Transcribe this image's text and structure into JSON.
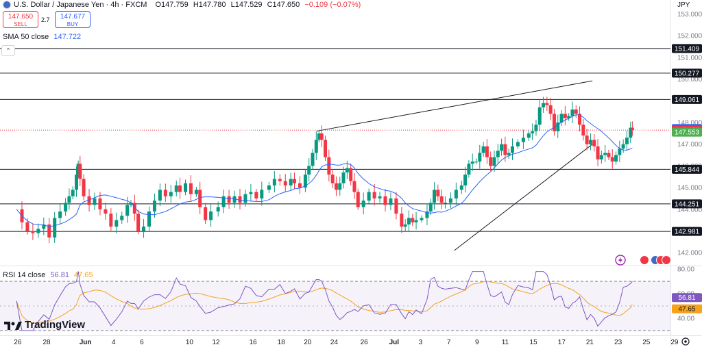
{
  "header": {
    "symbol": "U.S. Dollar / Japanese Yen · 4h · FXCM",
    "flag_icon": "us-jp-flag-icon",
    "ohlc": {
      "o": "O147.759",
      "h": "H147.780",
      "l": "L147.529",
      "c": "C147.650",
      "chg": "−0.109 (−0.07%)"
    }
  },
  "trade": {
    "sell_price": "147.650",
    "sell_label": "SELL",
    "spread": "2.7",
    "buy_price": "147.677",
    "buy_label": "BUY"
  },
  "indicators": {
    "sma": {
      "label": "SMA 50 close",
      "value": "147.722"
    },
    "rsi": {
      "label": "RSI 14 close",
      "value": "56.81",
      "ma_value": "47.65"
    }
  },
  "currency": "JPY",
  "brand": "TradingView",
  "colors": {
    "up": "#089981",
    "down": "#f23645",
    "sma": "#2962ff",
    "rsi": "#7e57c2",
    "rsi_ma": "#f7a21b",
    "accent_purple": "#9c27b0"
  },
  "chart_data": [
    {
      "type": "candlestick",
      "title": "U.S. Dollar / Japanese Yen · 4h · FXCM",
      "x_ticks": [
        "26",
        "28",
        "Jun",
        "4",
        "6",
        "10",
        "12",
        "16",
        "18",
        "20",
        "24",
        "26",
        "Jul",
        "3",
        "7",
        "9",
        "11",
        "15",
        "17",
        "21",
        "23",
        "25",
        "29"
      ],
      "y_ticks": [
        "153.000",
        "152.000",
        "151.000",
        "150.000",
        "149.000",
        "148.000",
        "147.000",
        "146.000",
        "145.000",
        "144.000",
        "143.000",
        "142.000"
      ],
      "ylim": [
        141.4,
        153.3
      ],
      "horizontal_levels": [
        151.409,
        150.277,
        149.061,
        145.844,
        144.251,
        142.981
      ],
      "price_labels": [
        {
          "text": "151.409",
          "value": 151.409,
          "bg": "#131722"
        },
        {
          "text": "150.277",
          "value": 150.277,
          "bg": "#131722"
        },
        {
          "text": "149.061",
          "value": 149.061,
          "bg": "#131722"
        },
        {
          "text": "147.722",
          "value": 147.722,
          "bg": "#2962ff"
        },
        {
          "text": "147.650",
          "value": 147.65,
          "bg": "#f23645"
        },
        {
          "text": "147.553",
          "value": 147.553,
          "bg": "#4caf50"
        },
        {
          "text": "145.844",
          "value": 145.844,
          "bg": "#131722"
        },
        {
          "text": "144.251",
          "value": 144.251,
          "bg": "#131722"
        },
        {
          "text": "142.981",
          "value": 142.981,
          "bg": "#131722"
        }
      ],
      "trendlines": [
        {
          "from": [
            16.2,
            147.6
          ],
          "to": [
            31.4,
            149.92
          ]
        },
        {
          "from": [
            23.8,
            142.1
          ],
          "to": [
            31.4,
            147.0
          ]
        }
      ],
      "current_price": 147.65,
      "close_series": [
        [
          -0.3,
          144.0
        ],
        [
          0.0,
          143.4
        ],
        [
          0.3,
          143.0
        ],
        [
          0.6,
          142.9
        ],
        [
          0.9,
          143.1
        ],
        [
          1.2,
          143.3
        ],
        [
          1.5,
          142.7
        ],
        [
          1.8,
          143.6
        ],
        [
          2.1,
          143.9
        ],
        [
          2.4,
          144.3
        ],
        [
          2.6,
          144.6
        ],
        [
          2.8,
          144.9
        ],
        [
          3.0,
          145.6
        ],
        [
          3.1,
          146.1
        ],
        [
          3.2,
          145.4
        ],
        [
          3.4,
          144.6
        ],
        [
          3.7,
          144.2
        ],
        [
          4.0,
          144.5
        ],
        [
          4.3,
          144.0
        ],
        [
          4.6,
          143.8
        ],
        [
          4.9,
          143.2
        ],
        [
          5.2,
          143.5
        ],
        [
          5.5,
          143.7
        ],
        [
          5.8,
          144.2
        ],
        [
          6.0,
          144.3
        ],
        [
          6.2,
          143.8
        ],
        [
          6.4,
          143.0
        ],
        [
          6.7,
          143.2
        ],
        [
          7.0,
          143.9
        ],
        [
          7.3,
          144.4
        ],
        [
          7.6,
          144.9
        ],
        [
          7.9,
          144.6
        ],
        [
          8.2,
          144.8
        ],
        [
          8.5,
          145.1
        ],
        [
          8.7,
          144.8
        ],
        [
          9.0,
          145.2
        ],
        [
          9.3,
          144.7
        ],
        [
          9.6,
          144.9
        ],
        [
          9.8,
          144.1
        ],
        [
          10.1,
          143.5
        ],
        [
          10.4,
          143.9
        ],
        [
          10.8,
          144.1
        ],
        [
          11.1,
          144.6
        ],
        [
          11.4,
          144.3
        ],
        [
          11.7,
          144.6
        ],
        [
          12.0,
          144.3
        ],
        [
          12.3,
          144.7
        ],
        [
          12.6,
          144.8
        ],
        [
          12.9,
          144.5
        ],
        [
          13.2,
          144.9
        ],
        [
          13.6,
          145.1
        ],
        [
          13.9,
          145.4
        ],
        [
          14.2,
          145.3
        ],
        [
          14.5,
          145.1
        ],
        [
          14.8,
          145.4
        ],
        [
          15.0,
          145.2
        ],
        [
          15.3,
          145.0
        ],
        [
          15.6,
          145.6
        ],
        [
          15.8,
          146.0
        ],
        [
          16.0,
          146.6
        ],
        [
          16.2,
          147.2
        ],
        [
          16.35,
          147.5
        ],
        [
          16.5,
          147.2
        ],
        [
          16.7,
          146.4
        ],
        [
          16.9,
          145.6
        ],
        [
          17.1,
          145.2
        ],
        [
          17.3,
          144.9
        ],
        [
          17.5,
          145.2
        ],
        [
          17.7,
          145.7
        ],
        [
          17.9,
          145.9
        ],
        [
          18.1,
          145.3
        ],
        [
          18.3,
          144.8
        ],
        [
          18.5,
          144.1
        ],
        [
          18.8,
          144.4
        ],
        [
          19.1,
          144.8
        ],
        [
          19.4,
          144.5
        ],
        [
          19.7,
          144.6
        ],
        [
          20.0,
          144.2
        ],
        [
          20.3,
          144.5
        ],
        [
          20.6,
          143.8
        ],
        [
          20.9,
          143.2
        ],
        [
          21.1,
          143.3
        ],
        [
          21.3,
          143.6
        ],
        [
          21.5,
          143.4
        ],
        [
          21.7,
          143.5
        ],
        [
          22.0,
          143.6
        ],
        [
          22.3,
          143.9
        ],
        [
          22.5,
          144.3
        ],
        [
          22.7,
          144.9
        ],
        [
          22.9,
          144.6
        ],
        [
          23.1,
          144.3
        ],
        [
          23.3,
          144.3
        ],
        [
          23.6,
          144.5
        ],
        [
          23.9,
          144.9
        ],
        [
          24.2,
          145.1
        ],
        [
          24.4,
          145.6
        ],
        [
          24.6,
          146.1
        ],
        [
          24.8,
          146.2
        ],
        [
          25.0,
          146.2
        ],
        [
          25.2,
          146.6
        ],
        [
          25.4,
          146.9
        ],
        [
          25.6,
          146.4
        ],
        [
          25.8,
          146.0
        ],
        [
          26.0,
          146.4
        ],
        [
          26.2,
          146.7
        ],
        [
          26.4,
          147.0
        ],
        [
          26.6,
          146.5
        ],
        [
          26.8,
          146.6
        ],
        [
          27.0,
          146.9
        ],
        [
          27.3,
          147.1
        ],
        [
          27.6,
          147.3
        ],
        [
          27.9,
          147.5
        ],
        [
          28.1,
          147.6
        ],
        [
          28.3,
          147.9
        ],
        [
          28.5,
          148.7
        ],
        [
          28.7,
          148.9
        ],
        [
          28.9,
          148.8
        ],
        [
          29.1,
          148.4
        ],
        [
          29.3,
          147.6
        ],
        [
          29.5,
          148.0
        ],
        [
          29.7,
          148.4
        ],
        [
          29.9,
          148.2
        ],
        [
          30.1,
          148.3
        ],
        [
          30.3,
          148.6
        ],
        [
          30.5,
          148.4
        ],
        [
          30.7,
          147.9
        ],
        [
          30.9,
          147.4
        ],
        [
          31.1,
          147.0
        ],
        [
          31.3,
          147.2
        ],
        [
          31.5,
          146.9
        ],
        [
          31.7,
          146.3
        ],
        [
          31.9,
          146.5
        ],
        [
          32.1,
          146.6
        ],
        [
          32.3,
          146.4
        ],
        [
          32.5,
          146.2
        ],
        [
          32.7,
          146.5
        ],
        [
          32.9,
          146.8
        ],
        [
          33.1,
          147.0
        ],
        [
          33.3,
          147.3
        ],
        [
          33.5,
          147.76
        ],
        [
          33.6,
          147.65
        ]
      ]
    },
    {
      "type": "line",
      "title": "RSI 14 close",
      "y_ticks": [
        "80.00",
        "60.00",
        "40.00"
      ],
      "ylim": [
        28,
        84
      ],
      "bands": [
        70,
        30
      ],
      "midline": 50,
      "series": [
        {
          "name": "RSI 14 close",
          "value_label": "56.81",
          "value_label_y": 56.81
        },
        {
          "name": "",
          "value_label": "47.65",
          "value_label_y": 47.65
        }
      ]
    }
  ]
}
